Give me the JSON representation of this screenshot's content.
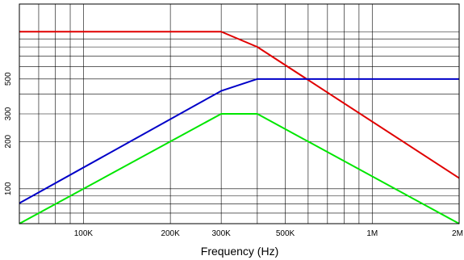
{
  "chart_data": {
    "type": "line",
    "title": "",
    "xlabel": "Frequency (Hz)",
    "ylabel": "",
    "x_scale": "log",
    "y_scale": "log",
    "xlim": [
      60000,
      2000000
    ],
    "ylim": [
      60,
      1500
    ],
    "grid": true,
    "x_ticks": [
      {
        "value": 100000,
        "label": "100K"
      },
      {
        "value": 200000,
        "label": "200K"
      },
      {
        "value": 300000,
        "label": "300K"
      },
      {
        "value": 500000,
        "label": "500K"
      },
      {
        "value": 1000000,
        "label": "1M"
      },
      {
        "value": 2000000,
        "label": "2M"
      }
    ],
    "y_ticks": [
      {
        "value": 100,
        "label": "100"
      },
      {
        "value": 200,
        "label": "200"
      },
      {
        "value": 300,
        "label": "300"
      },
      {
        "value": 500,
        "label": "500"
      }
    ],
    "series": [
      {
        "color": "#e00000",
        "x": [
          60000,
          300000,
          400000,
          2000000
        ],
        "y": [
          1000,
          1000,
          800,
          117
        ]
      },
      {
        "color": "#0000c8",
        "x": [
          60000,
          300000,
          400000,
          2000000
        ],
        "y": [
          81,
          420,
          500,
          500
        ]
      },
      {
        "color": "#00e600",
        "x": [
          60000,
          300000,
          400000,
          2000000
        ],
        "y": [
          60,
          300,
          300,
          60
        ]
      }
    ]
  }
}
